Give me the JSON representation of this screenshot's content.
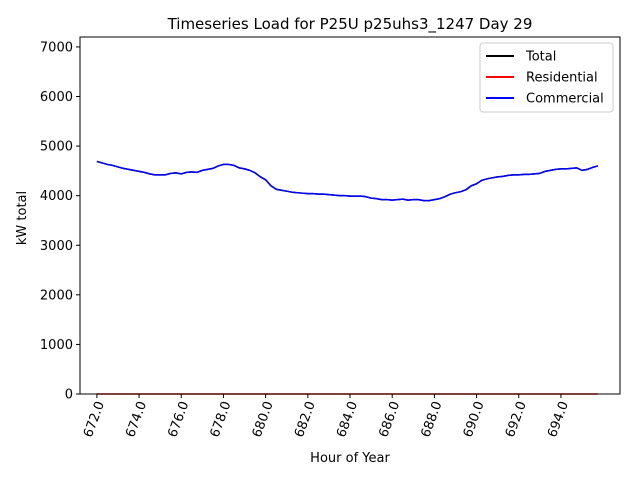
{
  "chart_data": {
    "type": "line",
    "title": "Timeseries Load for P25U p25uhs3_1247  Day 29",
    "xlabel": "Hour of Year",
    "ylabel": "kW total",
    "xlim": [
      671.2,
      696.8
    ],
    "ylim": [
      0,
      7200
    ],
    "xticks": [
      672,
      674,
      676,
      678,
      680,
      682,
      684,
      686,
      688,
      690,
      692,
      694
    ],
    "xtick_labels": [
      "672.0",
      "674.0",
      "676.0",
      "678.0",
      "680.0",
      "682.0",
      "684.0",
      "686.0",
      "688.0",
      "690.0",
      "692.0",
      "694.0"
    ],
    "yticks": [
      0,
      1000,
      2000,
      3000,
      4000,
      5000,
      6000,
      7000
    ],
    "ytick_labels": [
      "0",
      "1000",
      "2000",
      "3000",
      "4000",
      "5000",
      "6000",
      "7000"
    ],
    "grid": false,
    "legend_position": "top-right",
    "x": [
      672.0,
      672.25,
      672.5,
      672.75,
      673.0,
      673.25,
      673.5,
      673.75,
      674.0,
      674.25,
      674.5,
      674.75,
      675.0,
      675.25,
      675.5,
      675.75,
      676.0,
      676.25,
      676.5,
      676.75,
      677.0,
      677.25,
      677.5,
      677.75,
      678.0,
      678.25,
      678.5,
      678.75,
      679.0,
      679.25,
      679.5,
      679.75,
      680.0,
      680.25,
      680.5,
      680.75,
      681.0,
      681.25,
      681.5,
      681.75,
      682.0,
      682.25,
      682.5,
      682.75,
      683.0,
      683.25,
      683.5,
      683.75,
      684.0,
      684.25,
      684.5,
      684.75,
      685.0,
      685.25,
      685.5,
      685.75,
      686.0,
      686.25,
      686.5,
      686.75,
      687.0,
      687.25,
      687.5,
      687.75,
      688.0,
      688.25,
      688.5,
      688.75,
      689.0,
      689.25,
      689.5,
      689.75,
      690.0,
      690.25,
      690.5,
      690.75,
      691.0,
      691.25,
      691.5,
      691.75,
      692.0,
      692.25,
      692.5,
      692.75,
      693.0,
      693.25,
      693.5,
      693.75,
      694.0,
      694.25,
      694.5,
      694.75,
      695.0,
      695.25,
      695.5,
      695.75
    ],
    "series": [
      {
        "name": "Total",
        "color": "#000000",
        "values": [
          4690,
          4660,
          4630,
          4610,
          4580,
          4550,
          4530,
          4510,
          4490,
          4470,
          4440,
          4420,
          4420,
          4420,
          4450,
          4460,
          4440,
          4470,
          4480,
          4470,
          4510,
          4530,
          4550,
          4600,
          4630,
          4630,
          4610,
          4560,
          4540,
          4510,
          4460,
          4380,
          4320,
          4200,
          4130,
          4110,
          4090,
          4070,
          4060,
          4050,
          4040,
          4040,
          4030,
          4030,
          4020,
          4010,
          4000,
          4000,
          3990,
          3990,
          3990,
          3980,
          3950,
          3940,
          3920,
          3920,
          3910,
          3920,
          3930,
          3910,
          3920,
          3920,
          3900,
          3900,
          3920,
          3940,
          3980,
          4030,
          4060,
          4080,
          4120,
          4200,
          4240,
          4310,
          4340,
          4360,
          4380,
          4390,
          4410,
          4420,
          4420,
          4430,
          4430,
          4440,
          4450,
          4490,
          4510,
          4530,
          4540,
          4540,
          4550,
          4560,
          4510,
          4530,
          4570,
          4600
        ]
      },
      {
        "name": "Residential",
        "color": "#ff0000",
        "values": [
          0,
          0,
          0,
          0,
          0,
          0,
          0,
          0,
          0,
          0,
          0,
          0,
          0,
          0,
          0,
          0,
          0,
          0,
          0,
          0,
          0,
          0,
          0,
          0,
          0,
          0,
          0,
          0,
          0,
          0,
          0,
          0,
          0,
          0,
          0,
          0,
          0,
          0,
          0,
          0,
          0,
          0,
          0,
          0,
          0,
          0,
          0,
          0,
          0,
          0,
          0,
          0,
          0,
          0,
          0,
          0,
          0,
          0,
          0,
          0,
          0,
          0,
          0,
          0,
          0,
          0,
          0,
          0,
          0,
          0,
          0,
          0,
          0,
          0,
          0,
          0,
          0,
          0,
          0,
          0,
          0,
          0,
          0,
          0,
          0,
          0,
          0,
          0,
          0,
          0,
          0,
          0,
          0,
          0,
          0,
          0
        ]
      },
      {
        "name": "Commercial",
        "color": "#0000ff",
        "values": [
          4690,
          4660,
          4630,
          4610,
          4580,
          4550,
          4530,
          4510,
          4490,
          4470,
          4440,
          4420,
          4420,
          4420,
          4450,
          4460,
          4440,
          4470,
          4480,
          4470,
          4510,
          4530,
          4550,
          4600,
          4630,
          4630,
          4610,
          4560,
          4540,
          4510,
          4460,
          4380,
          4320,
          4200,
          4130,
          4110,
          4090,
          4070,
          4060,
          4050,
          4040,
          4040,
          4030,
          4030,
          4020,
          4010,
          4000,
          4000,
          3990,
          3990,
          3990,
          3980,
          3950,
          3940,
          3920,
          3920,
          3910,
          3920,
          3930,
          3910,
          3920,
          3920,
          3900,
          3900,
          3920,
          3940,
          3980,
          4030,
          4060,
          4080,
          4120,
          4200,
          4240,
          4310,
          4340,
          4360,
          4380,
          4390,
          4410,
          4420,
          4420,
          4430,
          4430,
          4440,
          4450,
          4490,
          4510,
          4530,
          4540,
          4540,
          4550,
          4560,
          4510,
          4530,
          4570,
          4600
        ]
      }
    ]
  }
}
